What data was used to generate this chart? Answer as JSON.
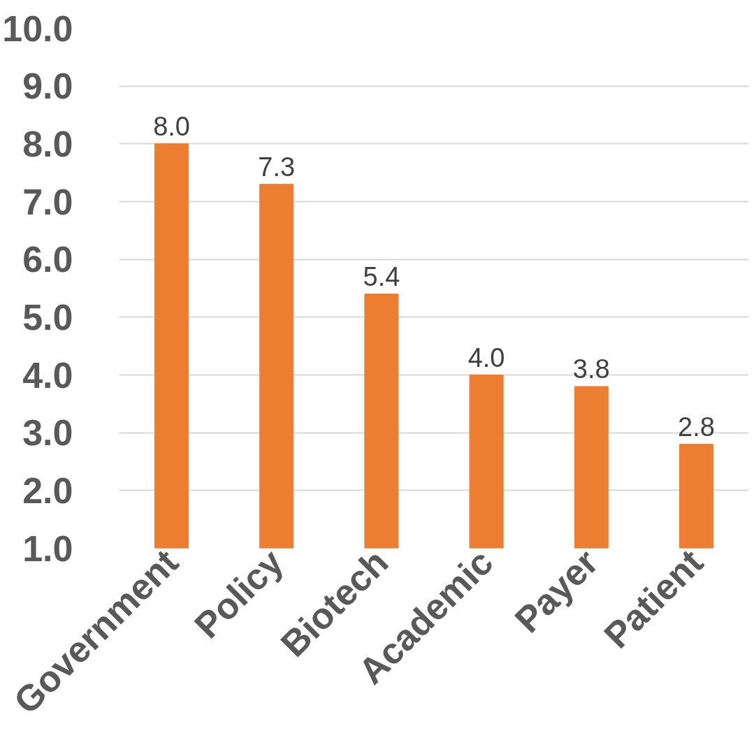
{
  "chart_data": {
    "type": "bar",
    "categories": [
      "Government",
      "Policy",
      "Biotech",
      "Academic",
      "Payer",
      "Patient"
    ],
    "values": [
      8.0,
      7.3,
      5.4,
      4.0,
      3.8,
      2.8
    ],
    "value_labels": [
      "8.0",
      "7.3",
      "5.4",
      "4.0",
      "3.8",
      "2.8"
    ],
    "color": "#ed7d31",
    "grid": "y",
    "ylim": [
      1,
      10
    ],
    "yticks": [
      {
        "value": 1,
        "label": "1.0"
      },
      {
        "value": 2,
        "label": "2.0"
      },
      {
        "value": 3,
        "label": "3.0"
      },
      {
        "value": 4,
        "label": "4.0"
      },
      {
        "value": 5,
        "label": "5.0"
      },
      {
        "value": 6,
        "label": "6.0"
      },
      {
        "value": 7,
        "label": "7.0"
      },
      {
        "value": 8,
        "label": "8.0"
      },
      {
        "value": 9,
        "label": "9.0"
      },
      {
        "value": 10,
        "label": "10.0"
      }
    ]
  }
}
